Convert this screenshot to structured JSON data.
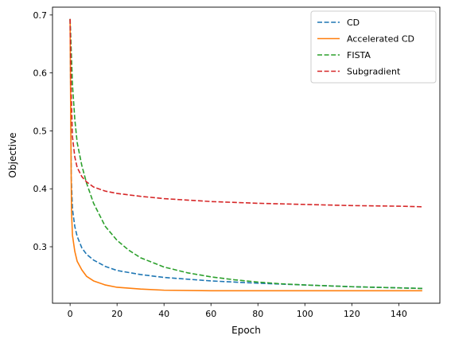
{
  "chart_data": {
    "type": "line",
    "title": "",
    "xlabel": "Epoch",
    "ylabel": "Objective",
    "xlim": [
      -7.5,
      157.5
    ],
    "ylim": [
      0.2025,
      0.7135
    ],
    "xticks": [
      0,
      20,
      40,
      60,
      80,
      100,
      120,
      140
    ],
    "xtick_labels": [
      "0",
      "20",
      "40",
      "60",
      "80",
      "100",
      "120",
      "140"
    ],
    "yticks": [
      0.3,
      0.4,
      0.5,
      0.6,
      0.7
    ],
    "ytick_labels": [
      "0.3",
      "0.4",
      "0.5",
      "0.6",
      "0.7"
    ],
    "grid": false,
    "legend_position": "top-right",
    "series": [
      {
        "name": "CD",
        "color": "#1f77b4",
        "linestyle": "dashed",
        "x": [
          0,
          0.5,
          1,
          2,
          3,
          5,
          7,
          10,
          15,
          20,
          30,
          40,
          50,
          60,
          80,
          100,
          120,
          140,
          150
        ],
        "y": [
          0.693,
          0.42,
          0.365,
          0.335,
          0.318,
          0.298,
          0.287,
          0.277,
          0.266,
          0.259,
          0.252,
          0.247,
          0.244,
          0.241,
          0.237,
          0.234,
          0.231,
          0.229,
          0.228
        ]
      },
      {
        "name": "Accelerated CD",
        "color": "#ff7f0e",
        "linestyle": "solid",
        "x": [
          0,
          0.3,
          0.6,
          1,
          2,
          3,
          5,
          7,
          10,
          15,
          20,
          30,
          40,
          60,
          80,
          100,
          120,
          150
        ],
        "y": [
          0.693,
          0.5,
          0.36,
          0.32,
          0.292,
          0.275,
          0.26,
          0.249,
          0.241,
          0.234,
          0.23,
          0.227,
          0.225,
          0.224,
          0.224,
          0.224,
          0.224,
          0.224
        ]
      },
      {
        "name": "FISTA",
        "color": "#2ca02c",
        "linestyle": "dashed",
        "x": [
          0,
          1,
          2,
          3,
          5,
          7,
          10,
          15,
          20,
          25,
          30,
          40,
          50,
          60,
          70,
          80,
          90,
          100,
          120,
          140,
          150
        ],
        "y": [
          0.693,
          0.58,
          0.52,
          0.48,
          0.44,
          0.41,
          0.375,
          0.335,
          0.311,
          0.294,
          0.281,
          0.265,
          0.255,
          0.248,
          0.243,
          0.239,
          0.236,
          0.234,
          0.231,
          0.229,
          0.228
        ]
      },
      {
        "name": "Subgradient",
        "color": "#d62728",
        "linestyle": "dashed",
        "x": [
          0,
          0.5,
          1,
          2,
          3,
          5,
          7,
          10,
          15,
          20,
          30,
          40,
          60,
          80,
          100,
          120,
          140,
          150
        ],
        "y": [
          0.693,
          0.56,
          0.49,
          0.455,
          0.437,
          0.421,
          0.412,
          0.403,
          0.396,
          0.392,
          0.387,
          0.383,
          0.378,
          0.375,
          0.373,
          0.371,
          0.37,
          0.369
        ]
      }
    ]
  }
}
